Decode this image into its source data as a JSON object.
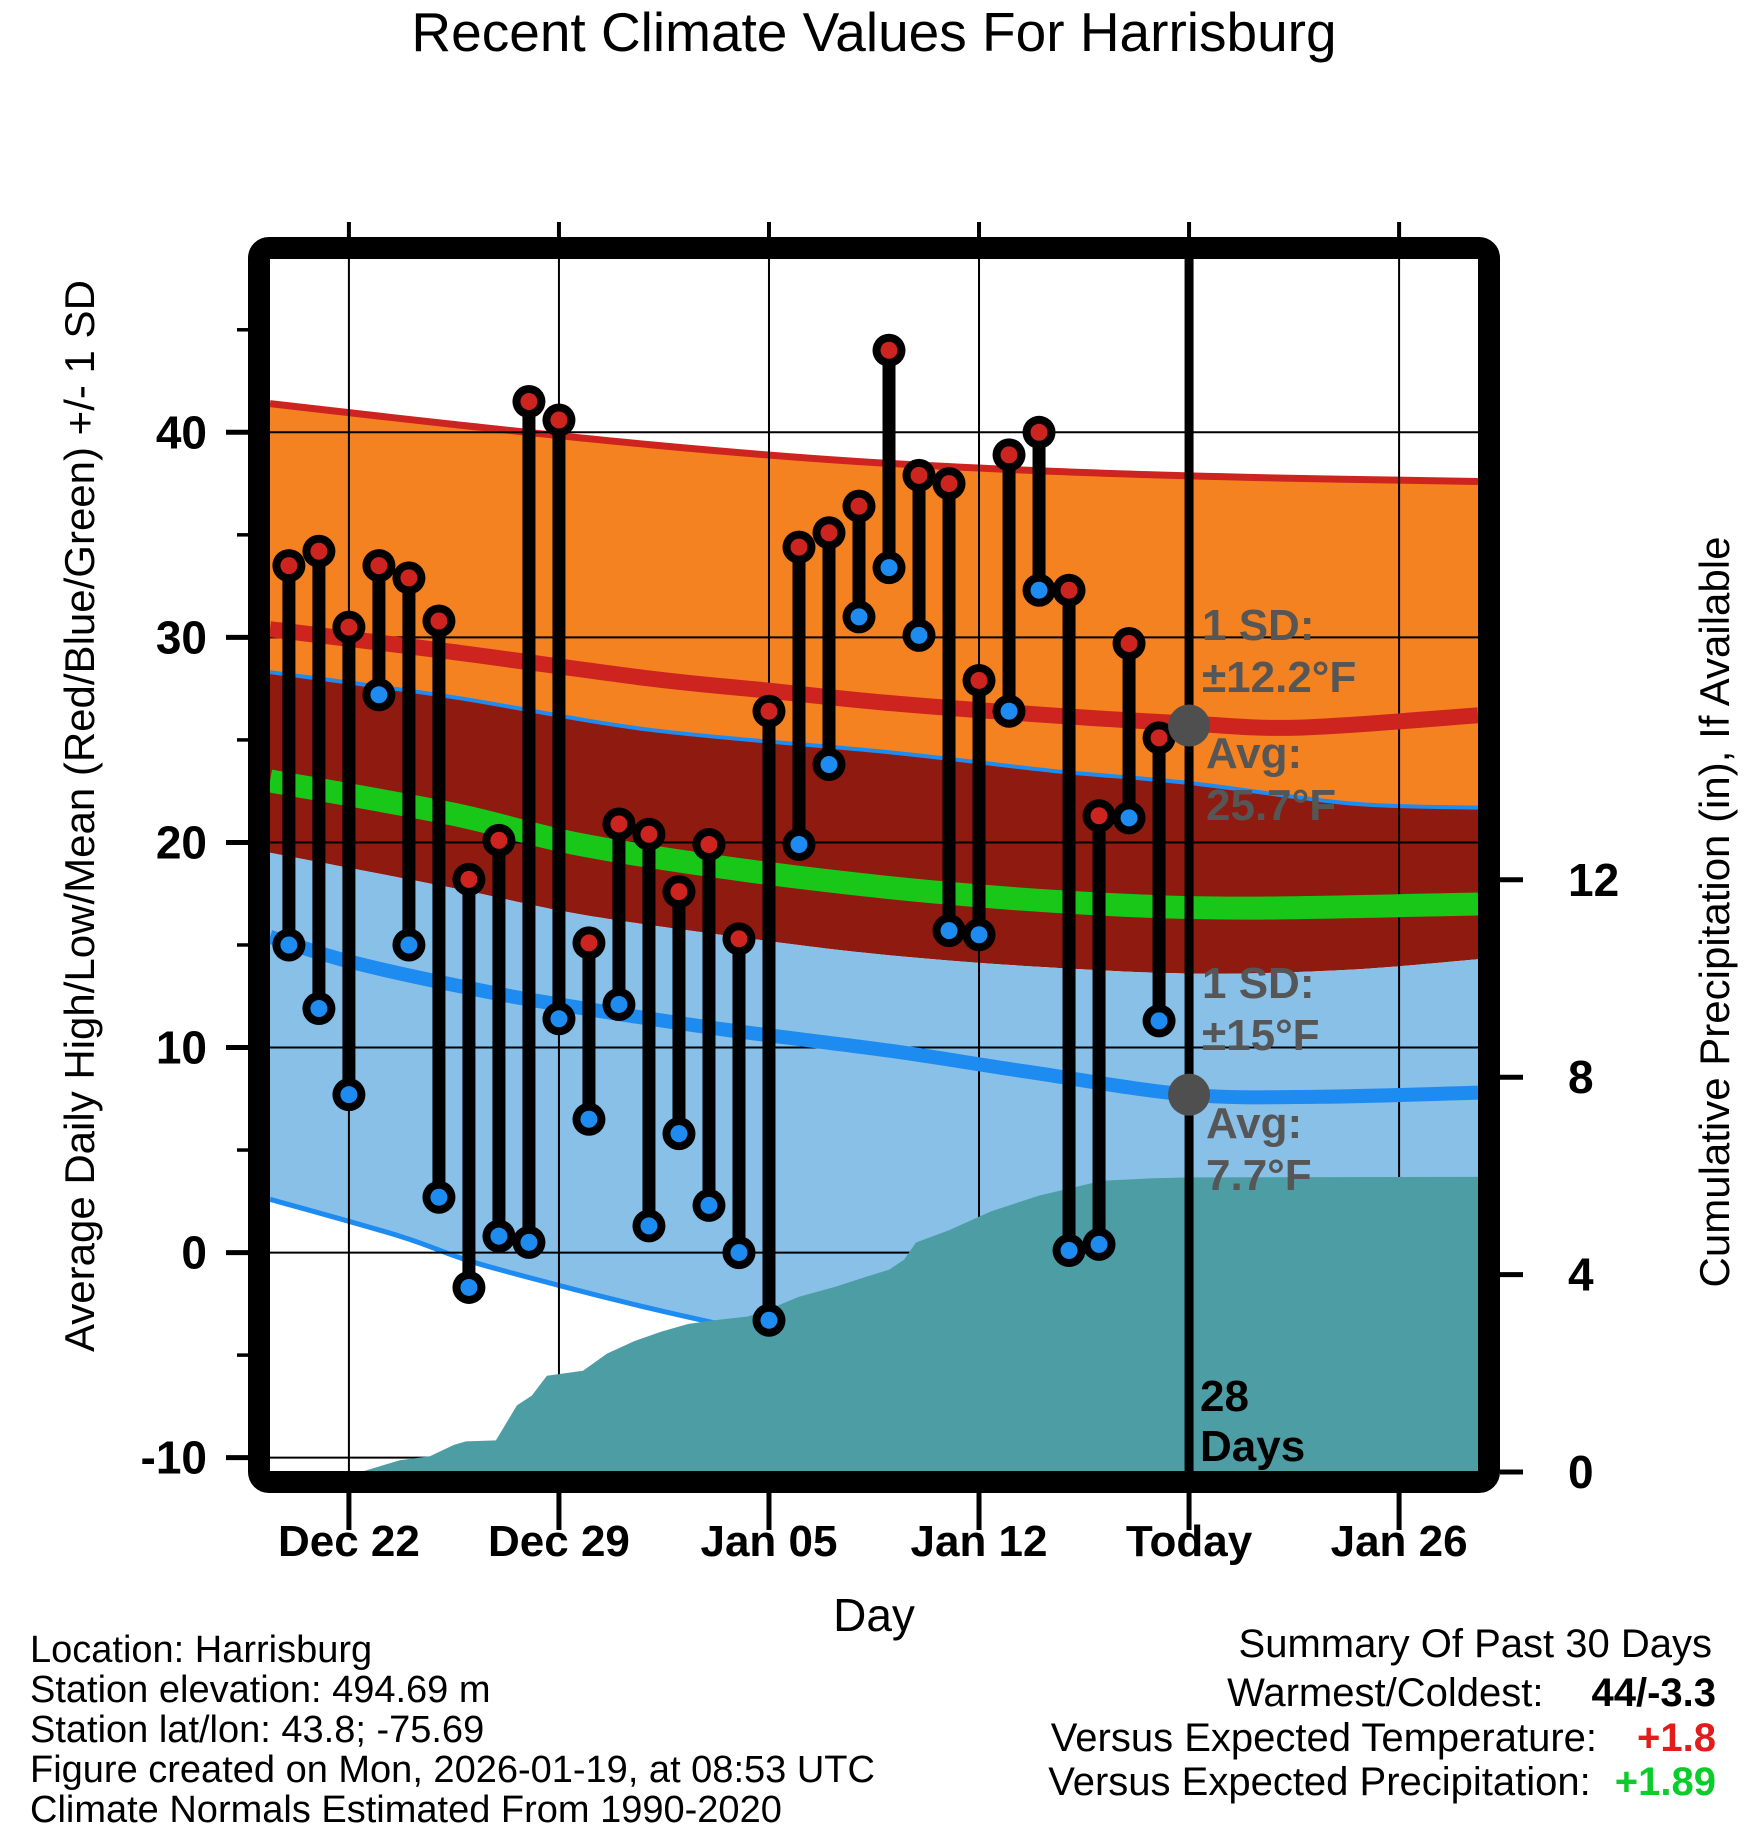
{
  "title": "Recent Climate Values For Harrisburg",
  "xlabel": "Day",
  "ylabel_left": "Average Daily High/Low/Mean (Red/Blue/Green) +/- 1 SD",
  "ylabel_right": "Cumulative Precipitation (in), If Available",
  "chart_data": {
    "type": "line",
    "title": "Recent Climate Values For Harrisburg",
    "xlabel": "Day",
    "ylabel_left": "Average Daily High/Low/Mean (Red/Blue/Green) +/- 1 SD",
    "ylabel_right": "Cumulative Precipitation (in), If Available",
    "x_tick_labels": [
      "Dec 22",
      "Dec 29",
      "Jan 05",
      "Jan 12",
      "Today",
      "Jan 26"
    ],
    "x_tick_days": [
      2,
      9,
      16,
      23,
      30,
      37
    ],
    "day_range": [
      -0.63,
      39.63
    ],
    "temp_range": [
      -10.7,
      48.5
    ],
    "precip_range": [
      0,
      24.6
    ],
    "y_left_ticks": [
      40,
      30,
      20,
      10,
      0,
      -10
    ],
    "y_left_minor_ticks": [
      45,
      35,
      25,
      15,
      5,
      -5
    ],
    "y_right_ticks": [
      12,
      8,
      4,
      0
    ],
    "daily": {
      "dates": [
        "Dec 20",
        "Dec 21",
        "Dec 22",
        "Dec 23",
        "Dec 24",
        "Dec 25",
        "Dec 26",
        "Dec 27",
        "Dec 28",
        "Dec 29",
        "Dec 30",
        "Dec 31",
        "Jan 01",
        "Jan 02",
        "Jan 03",
        "Jan 04",
        "Jan 05",
        "Jan 06",
        "Jan 07",
        "Jan 08",
        "Jan 09",
        "Jan 10",
        "Jan 11",
        "Jan 12",
        "Jan 13",
        "Jan 14",
        "Jan 15",
        "Jan 16",
        "Jan 17",
        "Jan 18"
      ],
      "high_f": [
        33.5,
        34.2,
        30.5,
        33.5,
        32.9,
        30.8,
        18.2,
        20.1,
        41.5,
        40.6,
        15.1,
        20.9,
        20.4,
        17.6,
        19.9,
        15.3,
        26.4,
        34.4,
        35.1,
        36.4,
        44.0,
        37.9,
        37.5,
        27.9,
        38.9,
        40.0,
        32.3,
        21.3,
        29.7,
        25.1
      ],
      "low_f": [
        15.0,
        11.9,
        7.7,
        27.2,
        15.0,
        2.7,
        -1.7,
        0.8,
        0.5,
        11.4,
        6.5,
        12.1,
        1.3,
        5.8,
        2.3,
        0.0,
        -3.3,
        19.9,
        23.8,
        31.0,
        33.4,
        30.1,
        15.7,
        15.5,
        26.4,
        32.3,
        0.1,
        0.4,
        21.2,
        11.3
      ]
    },
    "normals": {
      "high_plus_sd": [
        [
          -0.63,
          41.4
        ],
        [
          5.4,
          40.4
        ],
        [
          12,
          39.4
        ],
        [
          18.7,
          38.6
        ],
        [
          25.4,
          38.1
        ],
        [
          32,
          37.8
        ],
        [
          39.63,
          37.6
        ]
      ],
      "high_avg": [
        [
          -0.63,
          30.4
        ],
        [
          5.4,
          29.3
        ],
        [
          12,
          28.0
        ],
        [
          16,
          27.4
        ],
        [
          20,
          26.8
        ],
        [
          25.4,
          26.2
        ],
        [
          30,
          25.8
        ],
        [
          33.7,
          25.6
        ],
        [
          39.63,
          26.2
        ]
      ],
      "low_plus_sd": [
        [
          -0.63,
          28.3
        ],
        [
          5.4,
          27.1
        ],
        [
          12,
          25.5
        ],
        [
          20,
          24.4
        ],
        [
          25.4,
          23.5
        ],
        [
          30,
          22.9
        ],
        [
          35.4,
          21.9
        ],
        [
          39.63,
          21.7
        ]
      ],
      "mean": [
        [
          -0.63,
          23.0
        ],
        [
          5.4,
          21.4
        ],
        [
          9.7,
          19.9
        ],
        [
          15.4,
          18.6
        ],
        [
          21.4,
          17.6
        ],
        [
          27,
          17.0
        ],
        [
          32,
          16.8
        ],
        [
          39.63,
          17.0
        ]
      ],
      "high_minus_sd": [
        [
          -0.63,
          19.5
        ],
        [
          5.4,
          17.8
        ],
        [
          9.7,
          16.5
        ],
        [
          15.4,
          15.3
        ],
        [
          20,
          14.5
        ],
        [
          25.4,
          13.9
        ],
        [
          30.4,
          13.6
        ],
        [
          35.4,
          13.8
        ],
        [
          39.63,
          14.3
        ]
      ],
      "low_avg": [
        [
          -0.63,
          15.4
        ],
        [
          2,
          14.2
        ],
        [
          6,
          12.9
        ],
        [
          9,
          12.1
        ],
        [
          14.4,
          10.9
        ],
        [
          20,
          9.85
        ],
        [
          24.7,
          8.8
        ],
        [
          30,
          7.7
        ],
        [
          34.4,
          7.6
        ],
        [
          39.63,
          7.8
        ]
      ],
      "low_minus_sd": [
        [
          -0.63,
          2.6
        ],
        [
          3.7,
          0.8
        ],
        [
          6,
          -0.4
        ],
        [
          9,
          -1.6
        ],
        [
          11.7,
          -2.6
        ],
        [
          14.1,
          -3.4
        ],
        [
          18.7,
          -4.8
        ],
        [
          23.7,
          -6.0
        ],
        [
          28.7,
          -6.9
        ],
        [
          33.7,
          -7.3
        ],
        [
          39.63,
          -7.3
        ]
      ]
    },
    "precip_cumulative": [
      [
        -0.63,
        0
      ],
      [
        2.5,
        0.02
      ],
      [
        3.7,
        0.24
      ],
      [
        4.7,
        0.32
      ],
      [
        5.5,
        0.55
      ],
      [
        5.9,
        0.62
      ],
      [
        6.9,
        0.64
      ],
      [
        7.6,
        1.35
      ],
      [
        8.1,
        1.55
      ],
      [
        8.6,
        1.95
      ],
      [
        9.8,
        2.05
      ],
      [
        10.6,
        2.4
      ],
      [
        11.5,
        2.65
      ],
      [
        12.4,
        2.84
      ],
      [
        13.3,
        3.0
      ],
      [
        14.1,
        3.07
      ],
      [
        15.3,
        3.15
      ],
      [
        16.4,
        3.4
      ],
      [
        17,
        3.55
      ],
      [
        18.2,
        3.75
      ],
      [
        19.2,
        3.95
      ],
      [
        20,
        4.1
      ],
      [
        20.5,
        4.3
      ],
      [
        20.9,
        4.65
      ],
      [
        22,
        4.9
      ],
      [
        23.4,
        5.28
      ],
      [
        25,
        5.6
      ],
      [
        27.1,
        5.9
      ],
      [
        28.7,
        5.95
      ],
      [
        30,
        5.97
      ],
      [
        39.63,
        5.98
      ]
    ],
    "today_day": 30,
    "annotation_markers": [
      {
        "day": 30,
        "temp": 25.7,
        "on": "high_avg"
      },
      {
        "day": 30,
        "temp": 7.7,
        "on": "low_avg"
      }
    ]
  },
  "annotations": {
    "high_sd_line1": "1 SD:",
    "high_sd_line2": "±12.2°F",
    "high_avg_line1": "Avg:",
    "high_avg_line2": "25.7°F",
    "low_sd_line1": "1 SD:",
    "low_sd_line2": "±15°F",
    "low_avg_line1": "Avg:",
    "low_avg_line2": "7.7°F",
    "days_line1": "28",
    "days_line2": "Days"
  },
  "footer_left": {
    "line1": "Location: Harrisburg",
    "line2": "Station elevation: 494.69 m",
    "line3": "Station lat/lon: 43.8; -75.69",
    "line4": "Figure created on Mon, 2026-01-19, at 08:53 UTC",
    "line5": "Climate Normals Estimated From 1990-2020"
  },
  "summary": {
    "heading": "Summary Of Past 30 Days",
    "row1_label": "Warmest/Coldest:",
    "row1_value": "44/-3.3",
    "row2_label": "Versus Expected Temperature:",
    "row2_value": "+1.8",
    "row3_label": "Versus Expected Precipitation:",
    "row3_value": "+1.89"
  },
  "colors": {
    "orange_band": "#F58220",
    "dark_red_band": "#8F1A0F",
    "light_blue_band": "#89C0E8",
    "teal_precip": "#4C9DA4",
    "red_line": "#CE2420",
    "green_line": "#18C718",
    "blue_line": "#1E8BF0",
    "red_dot": "#CE2420",
    "blue_dot": "#1E8BF0",
    "gray_annotation": "#565656",
    "gray_dot": "#4F4F4F",
    "summary_temp_value": "#E21B1B",
    "summary_precip_value": "#0ACC2A",
    "grid": "#000000"
  }
}
